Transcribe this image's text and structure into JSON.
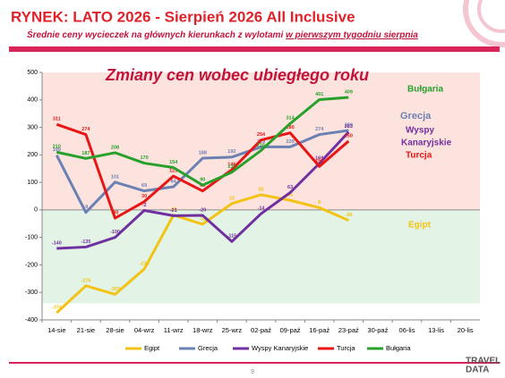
{
  "header": {
    "title": "RYNEK: LATO 2026 - Sierpień 2026 All Inclusive",
    "subtitle": [
      "Średnie ceny wycieczek na głównych kierunkach  z wylotami ",
      "w pierwszym tygodniu sierpnia"
    ]
  },
  "chart_data": {
    "type": "line",
    "title": "Zmiany cen wobec ubiegłego roku",
    "categories": [
      "14-sie",
      "21-sie",
      "28-sie",
      "04-wrz",
      "11-wrz",
      "18-wrz",
      "25-wrz",
      "02-paź",
      "09-paź",
      "16-paź",
      "23-paź",
      "30-paź",
      "06-lis",
      "13-lis",
      "20-lis"
    ],
    "ylim": [
      -400,
      500
    ],
    "yticks": [
      -400,
      -300,
      -200,
      -100,
      0,
      100,
      200,
      300,
      400,
      500
    ],
    "grid": false,
    "legend": "bottom",
    "series": [
      {
        "name": "Egipt",
        "color": "#f2c314",
        "values": [
          -374,
          -276,
          -307,
          -215,
          -19,
          -52,
          23,
          55,
          35,
          8,
          -38,
          null,
          null,
          null,
          null
        ]
      },
      {
        "name": "Grecja",
        "color": "#6b80b3",
        "values": [
          199,
          -9,
          101,
          69,
          84,
          188,
          192,
          229,
          229,
          274,
          289,
          null,
          null,
          null,
          null
        ]
      },
      {
        "name": "Wyspy Kanaryjskie",
        "color": "#7030a0",
        "values": [
          -140,
          -135,
          -100,
          -2,
          -21,
          -20,
          -115,
          -14,
          63,
          169,
          283,
          null,
          null,
          null,
          null
        ]
      },
      {
        "name": "Turcja",
        "color": "#e81515",
        "values": [
          311,
          274,
          -30,
          30,
          123,
          69,
          146,
          254,
          280,
          158,
          250,
          null,
          null,
          null,
          null
        ]
      },
      {
        "name": "Bułgaria",
        "color": "#27a02c",
        "values": [
          210,
          187,
          208,
          170,
          154,
          90,
          137,
          216,
          314,
          401,
          409,
          null,
          null,
          null,
          null
        ]
      }
    ],
    "annotations": [
      {
        "text": "Bułgaria",
        "color": "#27a02c"
      },
      {
        "text": "Grecja",
        "color": "#6b80b3"
      },
      {
        "text": "Wyspy",
        "color": "#7030a0"
      },
      {
        "text": "Kanaryjskie",
        "color": "#7030a0"
      },
      {
        "text": "Turcja",
        "color": "#e81515"
      },
      {
        "text": "Egipt",
        "color": "#f2c314"
      }
    ]
  },
  "footer": {
    "page": "9",
    "logo": [
      "TRAVEL",
      "DATA"
    ]
  }
}
